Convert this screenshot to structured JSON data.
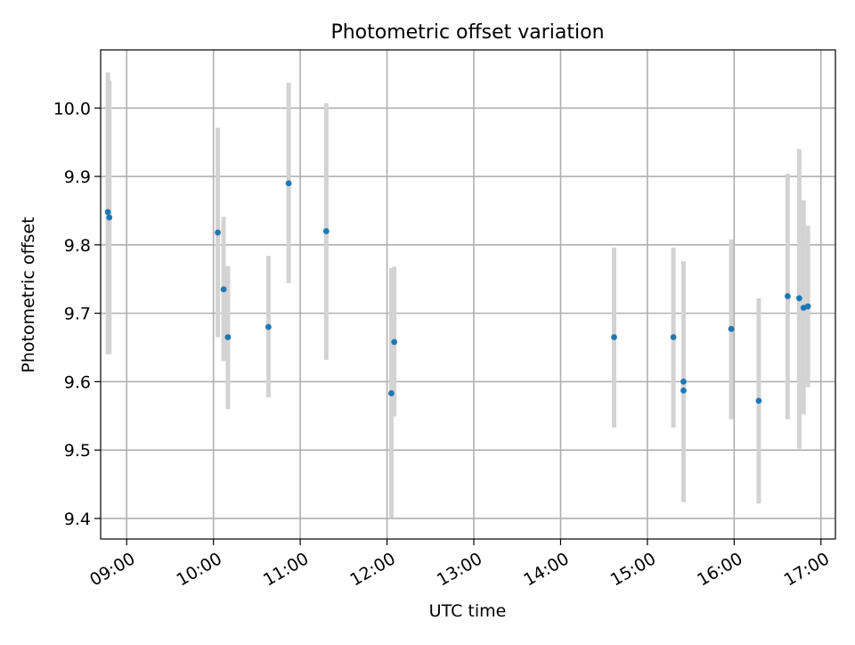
{
  "chart_data": {
    "type": "scatter",
    "title": "Photometric offset variation",
    "xlabel": "UTC time",
    "ylabel": "Photometric offset",
    "x_axis_kind": "time-of-day",
    "xlim": [
      "08:42",
      "17:10"
    ],
    "ylim": [
      9.37,
      10.085
    ],
    "xticks": [
      "09:00",
      "10:00",
      "11:00",
      "12:00",
      "13:00",
      "14:00",
      "15:00",
      "16:00",
      "17:00"
    ],
    "yticks": [
      "9.4",
      "9.5",
      "9.6",
      "9.7",
      "9.8",
      "9.9",
      "10.0"
    ],
    "grid": true,
    "legend": "none",
    "colors": {
      "marker": "#1f77b4",
      "errorbar": "#d3d3d3",
      "grid": "#b0b0b0"
    },
    "points": [
      {
        "x": "08:47",
        "y": 9.848,
        "ylow": 9.64,
        "yhigh": 10.052
      },
      {
        "x": "08:48",
        "y": 9.84,
        "ylow": 9.64,
        "yhigh": 10.04
      },
      {
        "x": "10:03",
        "y": 9.818,
        "ylow": 9.665,
        "yhigh": 9.971
      },
      {
        "x": "10:07",
        "y": 9.735,
        "ylow": 9.63,
        "yhigh": 9.841
      },
      {
        "x": "10:10",
        "y": 9.665,
        "ylow": 9.56,
        "yhigh": 9.769
      },
      {
        "x": "10:38",
        "y": 9.68,
        "ylow": 9.577,
        "yhigh": 9.784
      },
      {
        "x": "10:52",
        "y": 9.89,
        "ylow": 9.744,
        "yhigh": 10.037
      },
      {
        "x": "11:18",
        "y": 9.82,
        "ylow": 9.632,
        "yhigh": 10.007
      },
      {
        "x": "12:03",
        "y": 9.583,
        "ylow": 9.401,
        "yhigh": 9.766
      },
      {
        "x": "12:05",
        "y": 9.658,
        "ylow": 9.549,
        "yhigh": 9.768
      },
      {
        "x": "14:37",
        "y": 9.665,
        "ylow": 9.533,
        "yhigh": 9.796
      },
      {
        "x": "15:18",
        "y": 9.665,
        "ylow": 9.533,
        "yhigh": 9.796
      },
      {
        "x": "15:25",
        "y": 9.6,
        "ylow": 9.424,
        "yhigh": 9.776
      },
      {
        "x": "15:25",
        "y": 9.587,
        "ylow": 9.424,
        "yhigh": 9.75
      },
      {
        "x": "15:58",
        "y": 9.677,
        "ylow": 9.545,
        "yhigh": 9.808
      },
      {
        "x": "16:17",
        "y": 9.572,
        "ylow": 9.422,
        "yhigh": 9.722
      },
      {
        "x": "16:37",
        "y": 9.725,
        "ylow": 9.545,
        "yhigh": 9.904
      },
      {
        "x": "16:45",
        "y": 9.722,
        "ylow": 9.502,
        "yhigh": 9.94
      },
      {
        "x": "16:48",
        "y": 9.708,
        "ylow": 9.552,
        "yhigh": 9.865
      },
      {
        "x": "16:51",
        "y": 9.71,
        "ylow": 9.592,
        "yhigh": 9.828
      }
    ]
  }
}
